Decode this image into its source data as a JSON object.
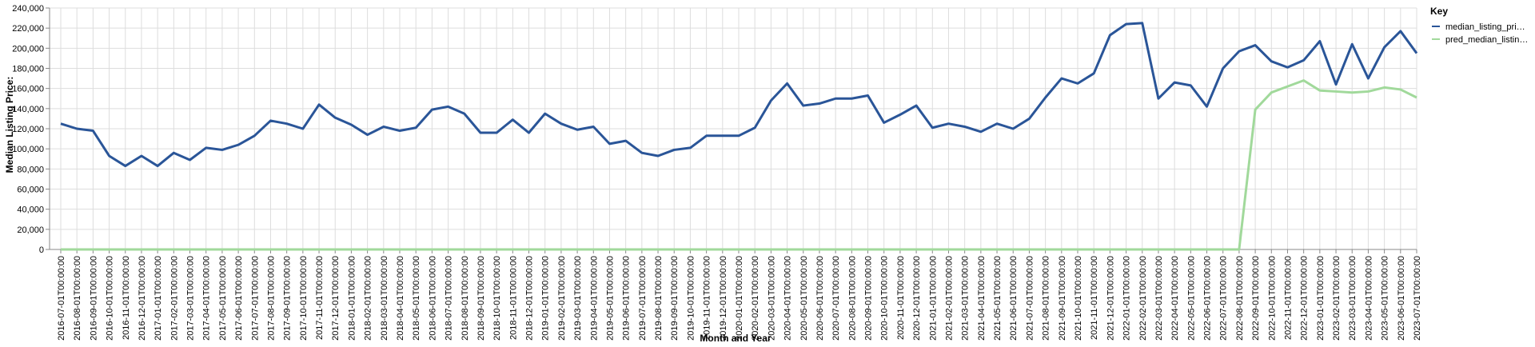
{
  "chart_data": {
    "type": "line",
    "xlabel": "Month and Year",
    "ylabel": "Median Listing Price:",
    "ylim": [
      0,
      240000
    ],
    "yticks": [
      0,
      20000,
      40000,
      60000,
      80000,
      100000,
      120000,
      140000,
      160000,
      180000,
      200000,
      220000,
      240000
    ],
    "ytick_labels": [
      "0",
      "20,000",
      "40,000",
      "60,000",
      "80,000",
      "100,000",
      "120,000",
      "140,000",
      "160,000",
      "180,000",
      "200,000",
      "220,000",
      "240,000"
    ],
    "grid": true,
    "legend": {
      "title": "Key",
      "position": "right"
    },
    "x": [
      "2016-07-01T00:00:00",
      "2016-08-01T00:00:00",
      "2016-09-01T00:00:00",
      "2016-10-01T00:00:00",
      "2016-11-01T00:00:00",
      "2016-12-01T00:00:00",
      "2017-01-01T00:00:00",
      "2017-02-01T00:00:00",
      "2017-03-01T00:00:00",
      "2017-04-01T00:00:00",
      "2017-05-01T00:00:00",
      "2017-06-01T00:00:00",
      "2017-07-01T00:00:00",
      "2017-08-01T00:00:00",
      "2017-09-01T00:00:00",
      "2017-10-01T00:00:00",
      "2017-11-01T00:00:00",
      "2017-12-01T00:00:00",
      "2018-01-01T00:00:00",
      "2018-02-01T00:00:00",
      "2018-03-01T00:00:00",
      "2018-04-01T00:00:00",
      "2018-05-01T00:00:00",
      "2018-06-01T00:00:00",
      "2018-07-01T00:00:00",
      "2018-08-01T00:00:00",
      "2018-09-01T00:00:00",
      "2018-10-01T00:00:00",
      "2018-11-01T00:00:00",
      "2018-12-01T00:00:00",
      "2019-01-01T00:00:00",
      "2019-02-01T00:00:00",
      "2019-03-01T00:00:00",
      "2019-04-01T00:00:00",
      "2019-05-01T00:00:00",
      "2019-06-01T00:00:00",
      "2019-07-01T00:00:00",
      "2019-08-01T00:00:00",
      "2019-09-01T00:00:00",
      "2019-10-01T00:00:00",
      "2019-11-01T00:00:00",
      "2019-12-01T00:00:00",
      "2020-01-01T00:00:00",
      "2020-02-01T00:00:00",
      "2020-03-01T00:00:00",
      "2020-04-01T00:00:00",
      "2020-05-01T00:00:00",
      "2020-06-01T00:00:00",
      "2020-07-01T00:00:00",
      "2020-08-01T00:00:00",
      "2020-09-01T00:00:00",
      "2020-10-01T00:00:00",
      "2020-11-01T00:00:00",
      "2020-12-01T00:00:00",
      "2021-01-01T00:00:00",
      "2021-02-01T00:00:00",
      "2021-03-01T00:00:00",
      "2021-04-01T00:00:00",
      "2021-05-01T00:00:00",
      "2021-06-01T00:00:00",
      "2021-07-01T00:00:00",
      "2021-08-01T00:00:00",
      "2021-09-01T00:00:00",
      "2021-10-01T00:00:00",
      "2021-11-01T00:00:00",
      "2021-12-01T00:00:00",
      "2022-01-01T00:00:00",
      "2022-02-01T00:00:00",
      "2022-03-01T00:00:00",
      "2022-04-01T00:00:00",
      "2022-05-01T00:00:00",
      "2022-06-01T00:00:00",
      "2022-07-01T00:00:00",
      "2022-08-01T00:00:00",
      "2022-09-01T00:00:00",
      "2022-10-01T00:00:00",
      "2022-11-01T00:00:00",
      "2022-12-01T00:00:00",
      "2023-01-01T00:00:00",
      "2023-02-01T00:00:00",
      "2023-03-01T00:00:00",
      "2023-04-01T00:00:00",
      "2023-05-01T00:00:00",
      "2023-06-01T00:00:00",
      "2023-07-01T00:00:00"
    ],
    "series": [
      {
        "name": "median_listing_pri…",
        "color": "#2a5598",
        "values": [
          125000,
          120000,
          118000,
          93000,
          83000,
          93000,
          83000,
          96000,
          89000,
          101000,
          99000,
          104000,
          113000,
          128000,
          125000,
          120000,
          144000,
          131000,
          124000,
          114000,
          122000,
          118000,
          121000,
          139000,
          142000,
          135000,
          116000,
          116000,
          129000,
          116000,
          135000,
          125000,
          119000,
          122000,
          105000,
          108000,
          96000,
          93000,
          99000,
          101000,
          113000,
          113000,
          113000,
          121000,
          148000,
          165000,
          143000,
          145000,
          150000,
          150000,
          153000,
          126000,
          134000,
          143000,
          121000,
          125000,
          122000,
          117000,
          125000,
          120000,
          130000,
          151000,
          170000,
          165000,
          175000,
          213000,
          224000,
          225000,
          150000,
          166000,
          163000,
          142000,
          180000,
          197000,
          203000,
          187000,
          181000,
          188000,
          207000,
          164000,
          204000,
          170000,
          201000,
          217000,
          195000
        ]
      },
      {
        "name": "pred_median_listin…",
        "color": "#a1d99b",
        "values": [
          0,
          0,
          0,
          0,
          0,
          0,
          0,
          0,
          0,
          0,
          0,
          0,
          0,
          0,
          0,
          0,
          0,
          0,
          0,
          0,
          0,
          0,
          0,
          0,
          0,
          0,
          0,
          0,
          0,
          0,
          0,
          0,
          0,
          0,
          0,
          0,
          0,
          0,
          0,
          0,
          0,
          0,
          0,
          0,
          0,
          0,
          0,
          0,
          0,
          0,
          0,
          0,
          0,
          0,
          0,
          0,
          0,
          0,
          0,
          0,
          0,
          0,
          0,
          0,
          0,
          0,
          0,
          0,
          0,
          0,
          0,
          0,
          0,
          0,
          139000,
          156000,
          162000,
          168000,
          158000,
          157000,
          156000,
          157000,
          161000,
          159000,
          151000
        ]
      }
    ]
  }
}
